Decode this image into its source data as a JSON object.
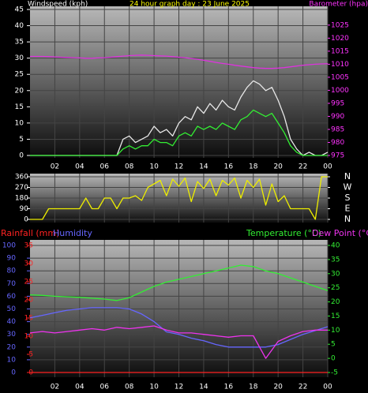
{
  "chart_data": [
    {
      "type": "line",
      "title": "24 hour graph day : 23 June 2025",
      "title_color": "#ffff00",
      "y_label": "Windspeed (kph)",
      "y2_label": "Barometer (hpa)",
      "axis_colors": {
        "y": "#ffffff",
        "y2": "#ff33ff"
      },
      "x": [
        0,
        0.5,
        1,
        1.5,
        2,
        2.5,
        3,
        3.5,
        4,
        4.5,
        5,
        5.5,
        6,
        6.5,
        7,
        7.5,
        8,
        8.5,
        9,
        9.5,
        10,
        10.5,
        11,
        11.5,
        12,
        12.5,
        13,
        13.5,
        14,
        14.5,
        15,
        15.5,
        16,
        16.5,
        17,
        17.5,
        18,
        18.5,
        19,
        19.5,
        20,
        20.5,
        21,
        21.5,
        22,
        22.5,
        23,
        23.5,
        24
      ],
      "xlim": [
        0,
        24
      ],
      "xticks": [
        {
          "value": 2,
          "label": "02"
        },
        {
          "value": 4,
          "label": "04"
        },
        {
          "value": 6,
          "label": "06"
        },
        {
          "value": 8,
          "label": "08"
        },
        10,
        12,
        14,
        16,
        18,
        20,
        22,
        {
          "value": 24,
          "label": "00"
        }
      ],
      "ylim": [
        0,
        45
      ],
      "yticks": [
        0,
        5,
        10,
        15,
        20,
        25,
        30,
        35,
        40,
        45
      ],
      "y2lim": [
        975,
        1031
      ],
      "y2ticks": [
        975,
        980,
        985,
        990,
        995,
        1000,
        1005,
        1010,
        1015,
        1020,
        1025
      ],
      "grid": true,
      "series": [
        {
          "color": "#e8e8e8",
          "values": [
            0,
            0,
            0,
            0,
            0,
            0,
            0,
            0,
            0,
            0,
            0,
            0,
            0,
            0,
            0,
            5,
            6,
            4,
            5,
            6,
            9,
            7,
            8,
            6,
            10,
            12,
            11,
            15,
            13,
            16,
            14,
            17,
            15,
            14,
            18,
            21,
            23,
            22,
            20,
            21,
            17,
            12,
            5,
            2,
            0,
            1,
            0,
            0,
            1
          ]
        },
        {
          "color": "#33ee33",
          "values": [
            0,
            0,
            0,
            0,
            0,
            0,
            0,
            0,
            0,
            0,
            0,
            0,
            0,
            0,
            0,
            2,
            3,
            2,
            3,
            3,
            5,
            4,
            4,
            3,
            6,
            7,
            6,
            9,
            8,
            9,
            8,
            10,
            9,
            8,
            11,
            12,
            14,
            13,
            12,
            13,
            10,
            7,
            3,
            1,
            0,
            0,
            0,
            0,
            0
          ]
        },
        {
          "color": "#dd33dd",
          "axis": "y2",
          "values": [
            1013,
            1013,
            1013,
            1012.9,
            1012.8,
            1012.7,
            1012.6,
            1012.5,
            1012.4,
            1012.3,
            1012.3,
            1012.4,
            1012.5,
            1012.7,
            1012.9,
            1013.1,
            1013.3,
            1013.4,
            1013.5,
            1013.4,
            1013.3,
            1013.2,
            1013.1,
            1012.9,
            1012.7,
            1012.5,
            1012.2,
            1011.9,
            1011.5,
            1011.1,
            1010.7,
            1010.3,
            1010,
            1009.6,
            1009.3,
            1009,
            1008.7,
            1008.5,
            1008.4,
            1008.4,
            1008.5,
            1008.7,
            1009,
            1009.3,
            1009.6,
            1009.8,
            1010,
            1010.1,
            1010.2
          ]
        }
      ]
    },
    {
      "type": "line",
      "axis_colors": {
        "y": "#ffffff",
        "y2": "#ffffff"
      },
      "x": [
        0,
        0.5,
        1,
        1.5,
        2,
        2.5,
        3,
        3.5,
        4,
        4.5,
        5,
        5.5,
        6,
        6.5,
        7,
        7.5,
        8,
        8.5,
        9,
        9.5,
        10,
        10.5,
        11,
        11.5,
        12,
        12.5,
        13,
        13.5,
        14,
        14.5,
        15,
        15.5,
        16,
        16.5,
        17,
        17.5,
        18,
        18.5,
        19,
        19.5,
        20,
        20.5,
        21,
        21.5,
        22,
        22.5,
        23,
        23.5,
        24
      ],
      "xlim": [
        0,
        24
      ],
      "xticks": [
        2,
        4,
        6,
        8,
        10,
        12,
        14,
        16,
        18,
        20,
        22,
        24
      ],
      "ylim": [
        0,
        360
      ],
      "yticks": [
        0,
        90,
        180,
        270,
        360
      ],
      "y2lim": [
        0,
        360
      ],
      "y2ticks": [
        {
          "value": 360,
          "label": "N"
        },
        {
          "value": 270,
          "label": "W"
        },
        {
          "value": 180,
          "label": "S"
        },
        {
          "value": 90,
          "label": "E"
        },
        {
          "value": 0,
          "label": "N"
        }
      ],
      "grid": true,
      "series": [
        {
          "color": "#eeee00",
          "values": [
            0,
            0,
            0,
            90,
            90,
            90,
            90,
            90,
            90,
            180,
            90,
            90,
            180,
            180,
            90,
            180,
            180,
            200,
            160,
            270,
            300,
            330,
            200,
            340,
            280,
            350,
            150,
            320,
            260,
            340,
            200,
            330,
            290,
            350,
            180,
            330,
            270,
            340,
            120,
            300,
            150,
            200,
            90,
            90,
            90,
            90,
            0,
            360,
            360
          ]
        }
      ]
    },
    {
      "type": "line",
      "axis_colors": {
        "y": "#6666ff",
        "y2": "#33ee33",
        "y3": "#ff2222"
      },
      "x": [
        0,
        1,
        2,
        3,
        4,
        5,
        6,
        7,
        8,
        9,
        10,
        11,
        12,
        13,
        14,
        15,
        16,
        17,
        18,
        19,
        20,
        21,
        22,
        23,
        24
      ],
      "xlim": [
        0,
        24
      ],
      "xticks": [
        {
          "value": 2,
          "label": "02"
        },
        {
          "value": 4,
          "label": "04"
        },
        {
          "value": 6,
          "label": "06"
        },
        {
          "value": 8,
          "label": "08"
        },
        10,
        12,
        14,
        16,
        18,
        20,
        22,
        {
          "value": 24,
          "label": "00"
        }
      ],
      "ylim": [
        0,
        100
      ],
      "yticks": [
        0,
        10,
        20,
        30,
        40,
        50,
        60,
        70,
        80,
        90,
        100
      ],
      "y2lim": [
        -5,
        40
      ],
      "y2ticks": [
        -5,
        0,
        5,
        10,
        15,
        20,
        25,
        30,
        35,
        40
      ],
      "y3lim": [
        0,
        35
      ],
      "y3ticks": [
        0,
        5,
        10,
        15,
        20,
        25,
        30,
        35
      ],
      "grid": true,
      "series": [
        {
          "name": "Rainfall (mm)",
          "color": "#ff2222",
          "axis": "y3",
          "values": [
            0,
            0,
            0,
            0,
            0,
            0,
            0,
            0,
            0,
            0,
            0,
            0,
            0,
            0,
            0,
            0,
            0,
            0,
            0,
            0,
            0,
            0,
            0,
            0,
            0
          ]
        },
        {
          "name": "Humidity",
          "color": "#6666ff",
          "values": [
            43,
            45,
            47,
            49,
            50,
            51,
            51,
            51,
            50,
            46,
            40,
            32,
            30,
            27,
            25,
            22,
            20,
            20,
            20,
            20,
            22,
            26,
            30,
            33,
            36
          ]
        },
        {
          "name": "Temperature (°C)",
          "color": "#33ee33",
          "axis": "y2",
          "values": [
            22.5,
            22.3,
            22,
            21.8,
            21.6,
            21.3,
            21,
            20.5,
            21.5,
            23.5,
            25.5,
            27,
            28,
            29,
            30,
            31,
            32,
            33,
            32.5,
            31,
            30,
            28.5,
            27,
            25.5,
            24
          ]
        },
        {
          "name": "Dew Point (°C)",
          "color": "#ee33ee",
          "axis": "y2",
          "values": [
            9,
            9.5,
            9,
            9.5,
            10,
            10.5,
            10,
            11,
            10.5,
            11,
            11.5,
            10,
            9,
            9,
            8.5,
            8,
            7.5,
            8,
            8,
            0,
            6,
            8,
            9.5,
            10,
            10
          ]
        }
      ]
    }
  ]
}
